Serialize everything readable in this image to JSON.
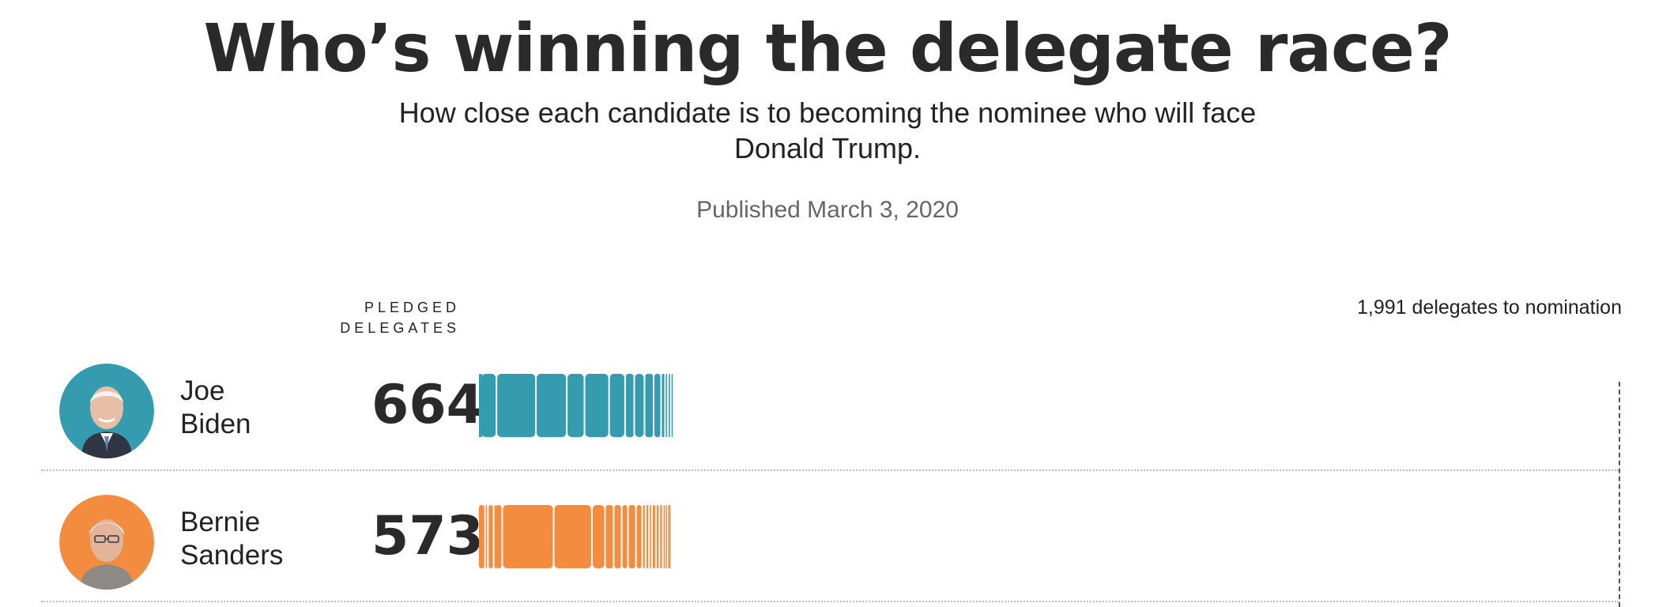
{
  "header": {
    "title": "Who’s winning the delegate race?",
    "subtitle": "How close each candidate is to becoming the nominee who will face Donald Trump.",
    "published": "Published March 3, 2020"
  },
  "column_header": "PLEDGED DELEGATES",
  "goal_label": "1,991 delegates to nomination",
  "chart_data": {
    "type": "bar",
    "title": "Who’s winning the delegate race?",
    "subtitle": "How close each candidate is to becoming the nominee who will face Donald Trump.",
    "xlabel": "",
    "ylabel": "PLEDGED DELEGATES",
    "xlim": [
      0,
      1991
    ],
    "target": {
      "value": 1991,
      "label": "1,991 delegates to nomination"
    },
    "categories": [
      "Joe Biden",
      "Bernie Sanders"
    ],
    "values": [
      664,
      573
    ],
    "colors": [
      "#359caf",
      "#f48c40"
    ],
    "segments": [
      [
        2,
        2,
        1,
        27,
        69,
        54,
        31,
        43,
        28,
        16,
        18,
        16,
        13,
        7,
        5,
        5,
        2
      ],
      [
        12,
        5,
        10,
        2,
        13,
        90,
        67,
        23,
        15,
        14,
        11,
        14,
        11,
        6,
        6,
        5,
        7,
        6,
        6,
        4,
        4,
        2,
        2
      ]
    ]
  },
  "candidates": [
    {
      "first": "Joe",
      "last": "Biden",
      "delegates": "664",
      "color": "#359caf",
      "icon": "biden-portrait"
    },
    {
      "first": "Bernie",
      "last": "Sanders",
      "delegates": "573",
      "color": "#f48c40",
      "icon": "sanders-portrait"
    }
  ]
}
